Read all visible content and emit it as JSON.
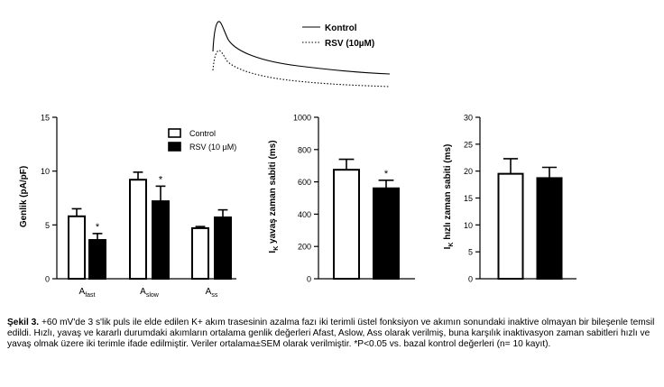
{
  "trace_inset": {
    "legend": [
      {
        "label": "Kontrol",
        "style": "solid"
      },
      {
        "label": "RSV (10µM)",
        "style": "dotted"
      }
    ]
  },
  "chart_data": [
    {
      "type": "bar",
      "ylabel": "Genlik (pA/pF)",
      "ylim": [
        0,
        15
      ],
      "yticks": [
        0,
        5,
        10,
        15
      ],
      "categories": [
        {
          "main": "A",
          "sub": "fast"
        },
        {
          "main": "A",
          "sub": "slow"
        },
        {
          "main": "A",
          "sub": "ss"
        }
      ],
      "legend_position": "top-right",
      "series": [
        {
          "name": "Control",
          "fill": "#ffffff",
          "values": [
            5.8,
            9.2,
            4.7
          ],
          "errors": [
            0.7,
            0.7,
            0.15
          ]
        },
        {
          "name": "RSV (10 µM)",
          "fill": "#000000",
          "values": [
            3.6,
            7.2,
            5.7
          ],
          "errors": [
            0.6,
            1.4,
            0.7
          ]
        }
      ],
      "significance": [
        [
          false,
          false,
          false
        ],
        [
          true,
          true,
          false
        ]
      ],
      "annotation": "*"
    },
    {
      "type": "bar",
      "ylabel_main": "I",
      "ylabel_sub": "K",
      "ylabel_rest": " yavaş zaman sabiti (ms)",
      "ylim": [
        0,
        1000
      ],
      "yticks": [
        0,
        200,
        400,
        600,
        800,
        1000
      ],
      "series": [
        {
          "name": "Control",
          "fill": "#ffffff",
          "values": [
            675
          ],
          "errors": [
            65
          ]
        },
        {
          "name": "RSV (10 µM)",
          "fill": "#000000",
          "values": [
            560
          ],
          "errors": [
            50
          ]
        }
      ],
      "significance": [
        [
          false
        ],
        [
          true
        ]
      ],
      "annotation": "*"
    },
    {
      "type": "bar",
      "ylabel_main": "I",
      "ylabel_sub": "K",
      "ylabel_rest": " hızlı zaman sabiti (ms)",
      "ylim": [
        0,
        30
      ],
      "yticks": [
        0,
        5,
        10,
        15,
        20,
        25,
        30
      ],
      "series": [
        {
          "name": "Control",
          "fill": "#ffffff",
          "values": [
            19.5
          ],
          "errors": [
            2.8
          ]
        },
        {
          "name": "RSV (10 µM)",
          "fill": "#000000",
          "values": [
            18.7
          ],
          "errors": [
            2.0
          ]
        }
      ],
      "significance": [
        [
          false
        ],
        [
          false
        ]
      ]
    }
  ],
  "caption": {
    "label": "Şekil 3.",
    "text": " +60 mV'de 3 s'lik puls ile elde edilen K+ akım trasesinin azalma fazı iki terimli üstel fonksiyon ve akımın sonundaki inaktive olmayan bir bileşenle temsil edildi. Hızlı, yavaş ve kararlı durumdaki akımların ortalama genlik değerleri Afast, Aslow, Ass olarak verilmiş, buna karşılık inaktivasyon zaman sabitleri hızlı ve yavaş olmak üzere iki terimle ifade edilmiştir. Veriler ortalama±SEM olarak verilmiştir. *P<0.05 vs. bazal kontrol değerleri (n= 10 kayıt)."
  }
}
